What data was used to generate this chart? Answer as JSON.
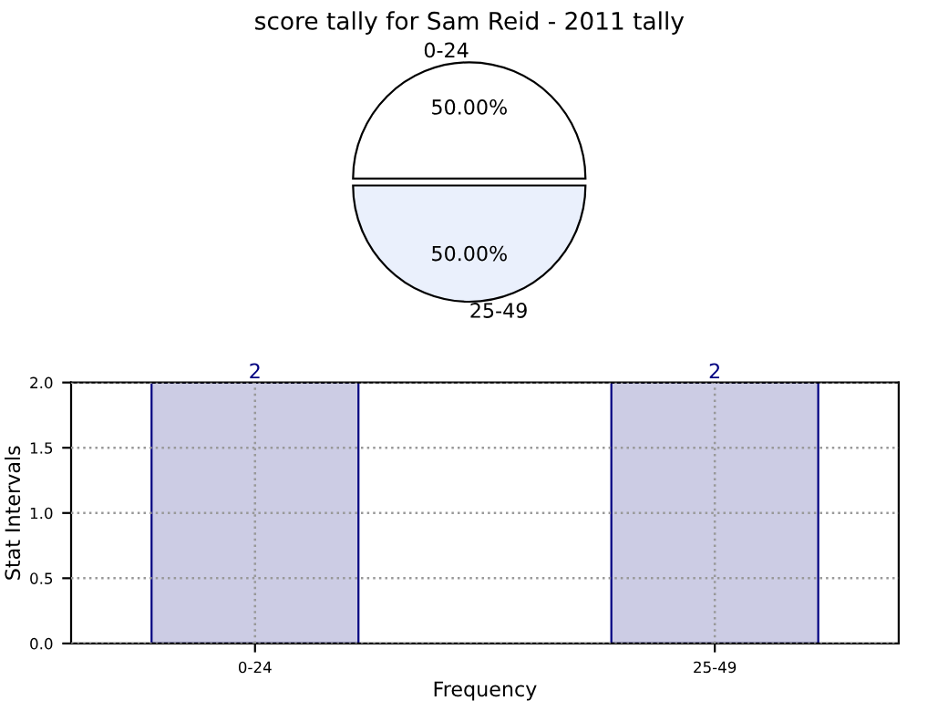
{
  "chart_data": [
    {
      "type": "pie",
      "title": "score tally for Sam Reid - 2011 tally",
      "categories": [
        "0-24",
        "25-49"
      ],
      "values": [
        50,
        50
      ],
      "value_labels": [
        "50.00%",
        "50.00%"
      ],
      "colors": [
        "#ffffff",
        "#eaf0fc"
      ]
    },
    {
      "type": "bar",
      "xlabel": "Frequency",
      "ylabel": "Stat Intervals",
      "categories": [
        "0-24",
        "25-49"
      ],
      "series": [
        {
          "color": "#ccccE4",
          "values": [
            2,
            2
          ]
        }
      ],
      "ylim": [
        0,
        2
      ],
      "yticks": [
        {
          "value": 0,
          "label": "0.0"
        },
        {
          "value": 0.5,
          "label": "0.5"
        },
        {
          "value": 1,
          "label": "1.0"
        },
        {
          "value": 1.5,
          "label": "1.5"
        },
        {
          "value": 2,
          "label": "2.0"
        }
      ],
      "data_labels": true,
      "grid": true,
      "legend": false
    }
  ]
}
